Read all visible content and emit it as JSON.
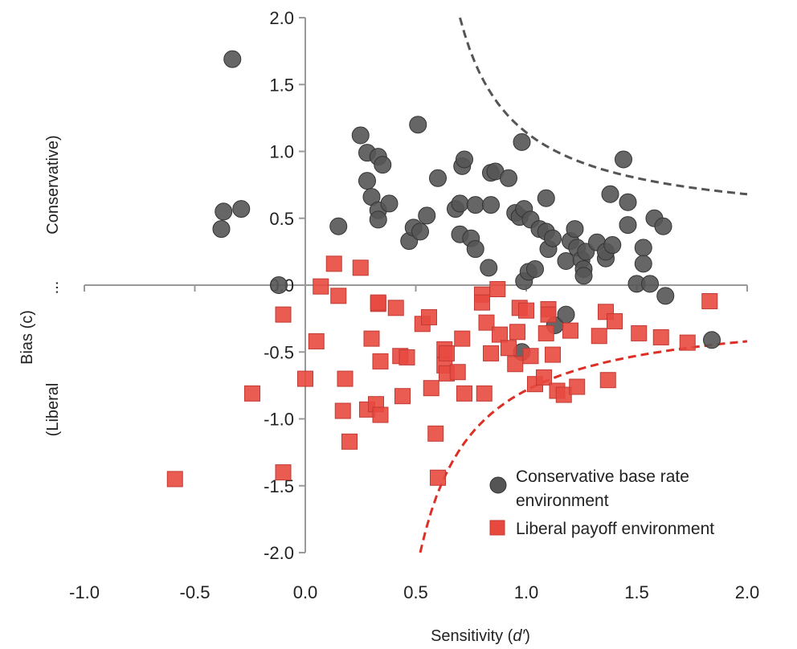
{
  "chart_data": {
    "type": "scatter",
    "xlabel": "Sensitivity (d′)",
    "ylabel_parts": [
      "Bias (c)",
      "(Liberal",
      "...",
      "Conservative)"
    ],
    "xlim": [
      -1.0,
      2.0
    ],
    "ylim": [
      -2.0,
      2.0
    ],
    "x_ticks": [
      "-1.0",
      "-0.5",
      "0.0",
      "0.5",
      "1.0",
      "1.5",
      "2.0"
    ],
    "y_ticks": [
      "-2.0",
      "-1.5",
      "-1.0",
      "-0.5",
      "0.0",
      "0.5",
      "1.0",
      "1.5",
      "2.0"
    ],
    "grid": false,
    "legend_position": "bottom-right",
    "series": [
      {
        "name": "Conservative base rate environment",
        "marker": "circle",
        "color": "#555555",
        "points": [
          [
            -0.33,
            1.69
          ],
          [
            -0.37,
            0.55
          ],
          [
            -0.29,
            0.57
          ],
          [
            -0.38,
            0.42
          ],
          [
            -0.12,
            0.0
          ],
          [
            0.15,
            0.44
          ],
          [
            0.25,
            1.12
          ],
          [
            0.28,
            0.99
          ],
          [
            0.28,
            0.78
          ],
          [
            0.3,
            0.66
          ],
          [
            0.33,
            0.96
          ],
          [
            0.35,
            0.9
          ],
          [
            0.33,
            0.56
          ],
          [
            0.33,
            0.49
          ],
          [
            0.38,
            0.61
          ],
          [
            0.47,
            0.33
          ],
          [
            0.49,
            0.43
          ],
          [
            0.52,
            0.4
          ],
          [
            0.55,
            0.52
          ],
          [
            0.51,
            1.2
          ],
          [
            0.6,
            0.8
          ],
          [
            0.68,
            0.57
          ],
          [
            0.7,
            0.61
          ],
          [
            0.71,
            0.89
          ],
          [
            0.72,
            0.94
          ],
          [
            0.7,
            0.38
          ],
          [
            0.77,
            0.6
          ],
          [
            0.75,
            0.35
          ],
          [
            0.77,
            0.27
          ],
          [
            0.83,
            0.13
          ],
          [
            0.84,
            0.84
          ],
          [
            0.86,
            0.85
          ],
          [
            0.84,
            0.6
          ],
          [
            0.92,
            0.8
          ],
          [
            0.95,
            0.54
          ],
          [
            0.97,
            0.51
          ],
          [
            0.99,
            0.57
          ],
          [
            0.98,
            1.07
          ],
          [
            0.99,
            0.03
          ],
          [
            1.01,
            0.1
          ],
          [
            1.04,
            0.12
          ],
          [
            1.02,
            0.49
          ],
          [
            1.06,
            0.42
          ],
          [
            1.09,
            0.4
          ],
          [
            1.1,
            0.27
          ],
          [
            1.12,
            0.35
          ],
          [
            1.09,
            0.65
          ],
          [
            1.18,
            0.18
          ],
          [
            1.2,
            0.33
          ],
          [
            1.22,
            0.42
          ],
          [
            1.23,
            0.28
          ],
          [
            1.25,
            0.19
          ],
          [
            1.26,
            0.12
          ],
          [
            1.26,
            0.07
          ],
          [
            1.27,
            0.25
          ],
          [
            1.32,
            0.32
          ],
          [
            1.36,
            0.2
          ],
          [
            1.36,
            0.25
          ],
          [
            1.38,
            0.68
          ],
          [
            1.39,
            0.3
          ],
          [
            1.44,
            0.94
          ],
          [
            1.46,
            0.62
          ],
          [
            1.46,
            0.45
          ],
          [
            1.5,
            0.01
          ],
          [
            1.53,
            0.28
          ],
          [
            1.53,
            0.16
          ],
          [
            1.56,
            0.01
          ],
          [
            1.58,
            0.5
          ],
          [
            1.62,
            0.44
          ],
          [
            1.63,
            -0.08
          ],
          [
            1.84,
            -0.41
          ],
          [
            1.13,
            -0.3
          ],
          [
            1.18,
            -0.22
          ],
          [
            0.98,
            -0.5
          ]
        ]
      },
      {
        "name": "Liberal payoff environment",
        "marker": "square",
        "color": "#e8493f",
        "points": [
          [
            -0.59,
            -1.45
          ],
          [
            -0.24,
            -0.81
          ],
          [
            -0.1,
            -0.22
          ],
          [
            -0.1,
            -1.4
          ],
          [
            0.0,
            -0.7
          ],
          [
            0.05,
            -0.42
          ],
          [
            0.07,
            -0.01
          ],
          [
            0.13,
            0.16
          ],
          [
            0.15,
            -0.08
          ],
          [
            0.17,
            -0.94
          ],
          [
            0.18,
            -0.7
          ],
          [
            0.2,
            -1.17
          ],
          [
            0.25,
            0.13
          ],
          [
            0.28,
            -0.93
          ],
          [
            0.3,
            -0.4
          ],
          [
            0.32,
            -0.89
          ],
          [
            0.33,
            -0.14
          ],
          [
            0.33,
            -0.13
          ],
          [
            0.34,
            -0.57
          ],
          [
            0.34,
            -0.97
          ],
          [
            0.41,
            -0.17
          ],
          [
            0.43,
            -0.53
          ],
          [
            0.44,
            -0.83
          ],
          [
            0.46,
            -0.54
          ],
          [
            0.53,
            -0.29
          ],
          [
            0.56,
            -0.24
          ],
          [
            0.57,
            -0.77
          ],
          [
            0.59,
            -1.11
          ],
          [
            0.6,
            -1.44
          ],
          [
            0.63,
            -0.48
          ],
          [
            0.63,
            -0.6
          ],
          [
            0.64,
            -0.66
          ],
          [
            0.64,
            -0.51
          ],
          [
            0.69,
            -0.65
          ],
          [
            0.71,
            -0.4
          ],
          [
            0.72,
            -0.81
          ],
          [
            0.8,
            -0.07
          ],
          [
            0.81,
            -0.81
          ],
          [
            0.8,
            -0.13
          ],
          [
            0.82,
            -0.28
          ],
          [
            0.84,
            -0.51
          ],
          [
            0.87,
            -0.03
          ],
          [
            0.88,
            -0.37
          ],
          [
            0.92,
            -0.47
          ],
          [
            0.95,
            -0.59
          ],
          [
            0.96,
            -0.35
          ],
          [
            0.97,
            -0.17
          ],
          [
            1.0,
            -0.19
          ],
          [
            1.02,
            -0.53
          ],
          [
            1.04,
            -0.74
          ],
          [
            1.08,
            -0.69
          ],
          [
            1.09,
            -0.36
          ],
          [
            1.1,
            -0.18
          ],
          [
            1.1,
            -0.22
          ],
          [
            1.12,
            -0.52
          ],
          [
            1.14,
            -0.79
          ],
          [
            1.17,
            -0.82
          ],
          [
            1.2,
            -0.34
          ],
          [
            1.23,
            -0.76
          ],
          [
            1.36,
            -0.2
          ],
          [
            1.33,
            -0.38
          ],
          [
            1.37,
            -0.71
          ],
          [
            1.4,
            -0.27
          ],
          [
            1.51,
            -0.36
          ],
          [
            1.61,
            -0.39
          ],
          [
            1.73,
            -0.43
          ],
          [
            1.83,
            -0.12
          ]
        ]
      }
    ],
    "reference_curves": [
      {
        "color": "#555555",
        "style": "dashed",
        "from_x": 0.7,
        "to_x": 2.0,
        "y_at_start": 2.0,
        "y_at_end": 0.68
      },
      {
        "color": "#dd2f25",
        "style": "dashed",
        "from_x": 0.52,
        "to_x": 2.0,
        "y_at_start": -2.0,
        "y_at_end": -0.42
      }
    ]
  }
}
